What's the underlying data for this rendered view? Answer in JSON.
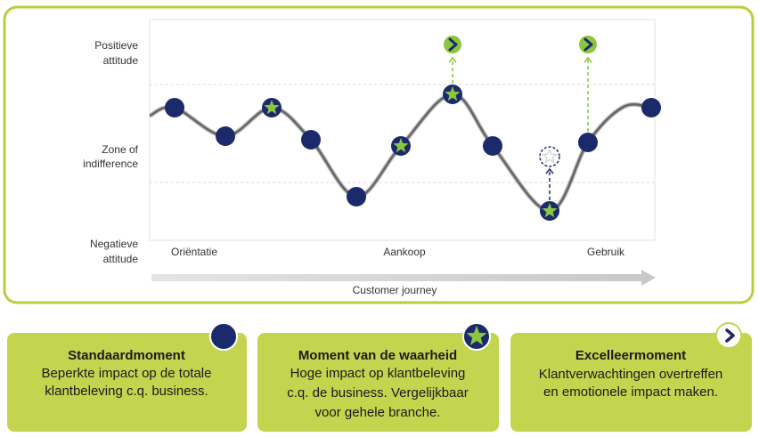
{
  "diagram": {
    "y_labels": [
      {
        "lines": [
          "Positieve",
          "attitude"
        ]
      },
      {
        "lines": [
          "Zone of",
          "indifference"
        ]
      },
      {
        "lines": [
          "Negatieve",
          "attitude"
        ]
      }
    ],
    "phases": [
      "Oriëntatie",
      "Aankoop",
      "Gebruik"
    ],
    "x_axis_label": "Customer journey"
  },
  "legend": [
    {
      "title": "Standaardmoment",
      "lines": [
        "Beperkte impact op de totale",
        "klantbeleving c.q. business."
      ]
    },
    {
      "title": "Moment van de waarheid",
      "lines": [
        "Hoge impact op klantbeleving",
        "c.q. de business. Vergelijkbaar",
        "voor gehele branche."
      ]
    },
    {
      "title": "Excelleermoment",
      "lines": [
        "Klantverwachtingen  overtreffen",
        "en emotionele impact maken."
      ]
    }
  ]
}
